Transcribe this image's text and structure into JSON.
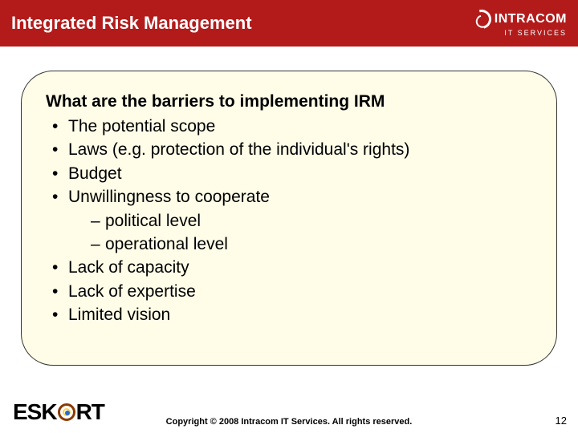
{
  "header": {
    "title": "Integrated Risk Management",
    "brand_name": "INTRACOM",
    "brand_sub": "IT SERVICES"
  },
  "card": {
    "heading": "What are the barriers to implementing IRM",
    "bullets": [
      {
        "text": "The potential scope"
      },
      {
        "text": "Laws (e.g. protection of the individual's rights)"
      },
      {
        "text": "Budget"
      },
      {
        "text": "Unwillingness to cooperate",
        "sub": [
          {
            "text": "political level"
          },
          {
            "text": "operational level"
          }
        ]
      },
      {
        "text": "Lack of capacity"
      },
      {
        "text": "Lack of expertise"
      },
      {
        "text": "Limited vision"
      }
    ]
  },
  "footer": {
    "eskort_pre": "ESK",
    "eskort_post": "RT",
    "copyright": "Copyright © 2008 Intracom IT Services. All rights reserved.",
    "page": "12"
  },
  "colors": {
    "header_bg": "#b31b1b",
    "card_bg": "#fffde8",
    "text": "#000000"
  }
}
